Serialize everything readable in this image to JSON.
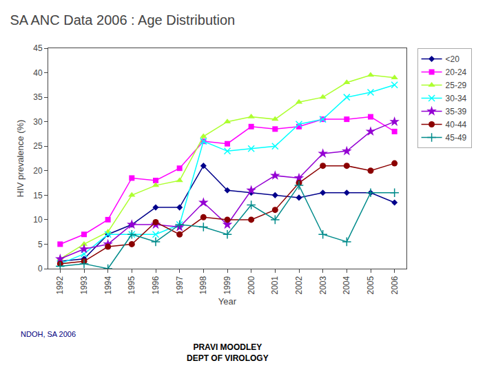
{
  "chart_data": {
    "type": "line",
    "title": "SA ANC Data 2006 : Age Distribution",
    "x_label": "Year",
    "y_label": "HIV prevalence (%)",
    "x": [
      1992,
      1993,
      1994,
      1995,
      1996,
      1997,
      1998,
      1999,
      2000,
      2001,
      2002,
      2003,
      2004,
      2005,
      2006
    ],
    "xlim": [
      1991.5,
      2006.5
    ],
    "xticks": [
      1992,
      1993,
      1994,
      1995,
      1996,
      1997,
      1998,
      1999,
      2000,
      2001,
      2002,
      2003,
      2004,
      2005,
      2006
    ],
    "ylim": [
      0,
      45
    ],
    "yticks": [
      0,
      5,
      10,
      15,
      20,
      25,
      30,
      35,
      40,
      45
    ],
    "grid": false,
    "legend": "right",
    "annotations": [
      "NDOH, SA 2006",
      "PRAVI MOODLEY\nDEPT OF VIROLOGY"
    ],
    "series": [
      {
        "name": "<20",
        "color": "#00008B",
        "marker": "diamond",
        "line_style": "solid",
        "values": [
          1.5,
          2.0,
          7.0,
          9.0,
          12.5,
          12.5,
          21.0,
          16.0,
          15.5,
          15.0,
          14.5,
          15.5,
          15.5,
          15.5,
          13.5
        ]
      },
      {
        "name": "20-24",
        "color": "#FF00FF",
        "marker": "square",
        "line_style": "solid",
        "values": [
          5.0,
          7.0,
          10.0,
          18.5,
          18.0,
          20.5,
          26.0,
          25.5,
          29.0,
          28.5,
          29.0,
          30.5,
          30.5,
          31.0,
          28.0
        ]
      },
      {
        "name": "25-29",
        "color": "#ADFF2F",
        "marker": "triangle-up",
        "line_style": "solid",
        "values": [
          2.0,
          5.0,
          7.5,
          15.0,
          17.0,
          18.0,
          27.0,
          30.0,
          31.0,
          30.5,
          34.0,
          35.0,
          38.0,
          39.5,
          39.0
        ]
      },
      {
        "name": "30-34",
        "color": "#00FFFF",
        "marker": "x",
        "line_style": "solid",
        "values": [
          1.0,
          3.0,
          7.0,
          7.0,
          7.0,
          9.0,
          26.0,
          24.0,
          24.5,
          25.0,
          29.5,
          30.5,
          35.0,
          36.0,
          37.5
        ]
      },
      {
        "name": "35-39",
        "color": "#9400D3",
        "marker": "star",
        "line_style": "solid",
        "values": [
          2.0,
          4.0,
          5.0,
          9.0,
          9.0,
          8.5,
          13.5,
          9.0,
          16.0,
          19.0,
          18.5,
          23.5,
          24.0,
          28.0,
          30.0
        ]
      },
      {
        "name": "40-44",
        "color": "#8B0000",
        "marker": "circle",
        "line_style": "solid",
        "values": [
          1.0,
          1.5,
          4.5,
          5.0,
          9.5,
          7.0,
          10.5,
          10.0,
          10.0,
          12.0,
          17.5,
          21.0,
          21.0,
          20.0,
          21.5
        ]
      },
      {
        "name": "45-49",
        "color": "#008B8B",
        "marker": "plus",
        "line_style": "solid",
        "values": [
          0.5,
          1.0,
          0.0,
          7.0,
          5.5,
          9.0,
          8.5,
          7.0,
          13.0,
          10.0,
          17.0,
          7.0,
          5.5,
          15.5,
          15.5
        ]
      }
    ]
  }
}
